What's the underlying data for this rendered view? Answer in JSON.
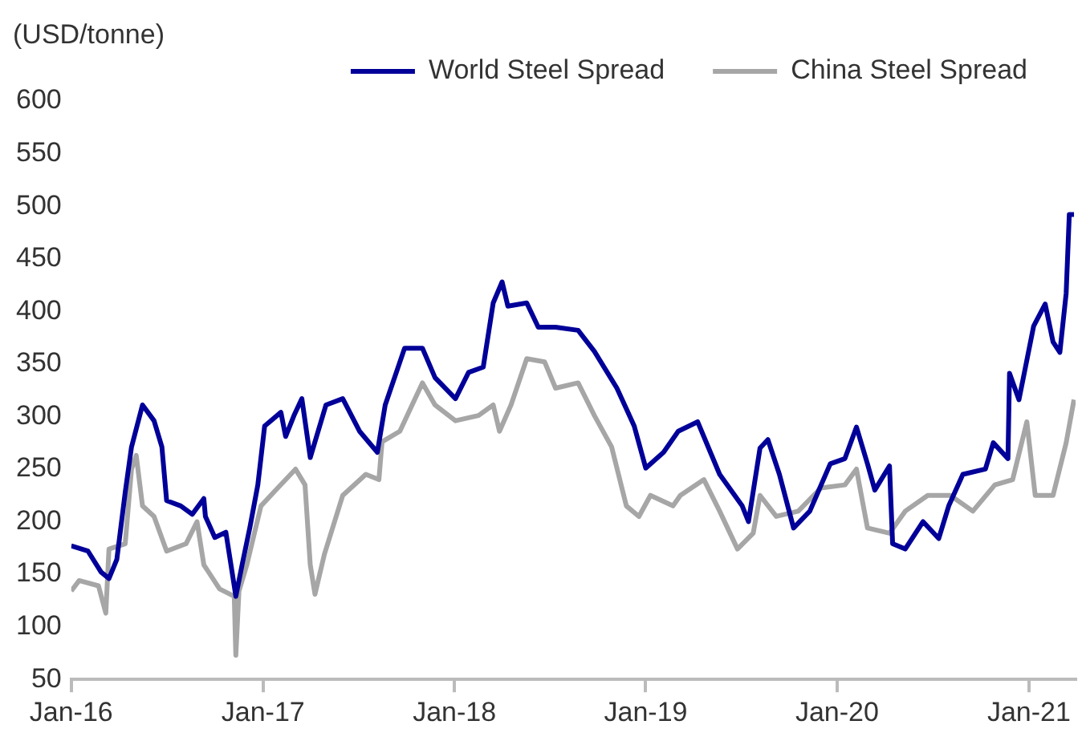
{
  "chart_data": {
    "type": "line",
    "ylabel": "(USD/tonne)",
    "xlim": [
      "2016-01-01",
      "2021-03-31"
    ],
    "xticks": [
      {
        "value": "2016-01-01",
        "label": "Jan-16"
      },
      {
        "value": "2017-01-01",
        "label": "Jan-17"
      },
      {
        "value": "2018-01-01",
        "label": "Jan-18"
      },
      {
        "value": "2019-01-01",
        "label": "Jan-19"
      },
      {
        "value": "2020-01-01",
        "label": "Jan-20"
      },
      {
        "value": "2021-01-01",
        "label": "Jan-21"
      }
    ],
    "ylim": [
      50,
      600
    ],
    "yticks": [
      50,
      100,
      150,
      200,
      250,
      300,
      350,
      400,
      450,
      500,
      550,
      600
    ],
    "grid": false,
    "legend": "top",
    "marker": "none",
    "line_style": "solid",
    "series": [
      {
        "name": "World Steel Spread",
        "color": "#000099",
        "x": [
          "2016-01-01",
          "2016-02-02",
          "2016-02-27",
          "2016-03-13",
          "2016-03-28",
          "2016-04-13",
          "2016-04-25",
          "2016-05-16",
          "2016-06-07",
          "2016-06-22",
          "2016-07-01",
          "2016-07-28",
          "2016-08-19",
          "2016-09-10",
          "2016-09-13",
          "2016-10-01",
          "2016-10-22",
          "2016-11-07",
          "2016-11-10",
          "2016-11-22",
          "2016-12-07",
          "2016-12-22",
          "2017-01-04",
          "2017-02-04",
          "2017-02-13",
          "2017-03-01",
          "2017-03-16",
          "2017-04-01",
          "2017-05-01",
          "2017-06-02",
          "2017-07-04",
          "2017-08-07",
          "2017-08-22",
          "2017-09-28",
          "2017-11-01",
          "2017-11-25",
          "2018-01-03",
          "2018-01-28",
          "2018-02-25",
          "2018-03-16",
          "2018-04-02",
          "2018-04-13",
          "2018-05-19",
          "2018-06-10",
          "2018-07-13",
          "2018-08-25",
          "2018-09-25",
          "2018-11-07",
          "2018-12-10",
          "2019-01-01",
          "2019-02-04",
          "2019-03-04",
          "2019-04-10",
          "2019-05-01",
          "2019-05-22",
          "2019-07-04",
          "2019-07-16",
          "2019-08-07",
          "2019-08-22",
          "2019-09-13",
          "2019-10-10",
          "2019-11-10",
          "2019-12-19",
          "2020-01-16",
          "2020-02-07",
          "2020-02-28",
          "2020-03-13",
          "2020-04-10",
          "2020-04-16",
          "2020-05-10",
          "2020-06-13",
          "2020-07-13",
          "2020-08-01",
          "2020-08-28",
          "2020-10-10",
          "2020-10-25",
          "2020-11-22",
          "2020-11-25",
          "2020-12-13",
          "2021-01-10",
          "2021-02-01",
          "2021-02-16",
          "2021-03-01",
          "2021-03-13",
          "2021-03-19",
          "2021-03-28"
        ],
        "values": [
          177,
          172,
          152,
          146,
          164,
          228,
          271,
          311,
          296,
          271,
          220,
          215,
          207,
          222,
          205,
          185,
          190,
          139,
          129,
          159,
          195,
          235,
          291,
          304,
          281,
          301,
          317,
          261,
          311,
          317,
          286,
          266,
          311,
          365,
          365,
          337,
          317,
          342,
          347,
          408,
          428,
          405,
          408,
          385,
          385,
          382,
          362,
          327,
          291,
          251,
          266,
          286,
          295,
          270,
          245,
          215,
          200,
          270,
          278,
          245,
          194,
          210,
          255,
          260,
          290,
          255,
          230,
          253,
          179,
          174,
          200,
          184,
          215,
          245,
          250,
          275,
          260,
          341,
          316,
          386,
          407,
          371,
          361,
          417,
          492,
          492
        ]
      },
      {
        "name": "China Steel Spread",
        "color": "#a6a6a6",
        "x": [
          "2016-01-01",
          "2016-01-16",
          "2016-02-22",
          "2016-03-07",
          "2016-03-13",
          "2016-04-13",
          "2016-04-25",
          "2016-05-04",
          "2016-05-16",
          "2016-06-07",
          "2016-07-01",
          "2016-08-07",
          "2016-08-28",
          "2016-09-10",
          "2016-10-10",
          "2016-11-07",
          "2016-11-10",
          "2016-11-16",
          "2016-12-01",
          "2016-12-28",
          "2017-01-25",
          "2017-03-04",
          "2017-03-22",
          "2017-04-01",
          "2017-04-10",
          "2017-04-28",
          "2017-06-02",
          "2017-07-16",
          "2017-08-10",
          "2017-08-16",
          "2017-09-19",
          "2017-11-01",
          "2017-11-25",
          "2018-01-03",
          "2018-02-16",
          "2018-03-16",
          "2018-03-28",
          "2018-04-19",
          "2018-05-19",
          "2018-06-22",
          "2018-07-13",
          "2018-08-25",
          "2018-09-25",
          "2018-10-28",
          "2018-11-25",
          "2018-12-19",
          "2019-01-10",
          "2019-02-22",
          "2019-03-08",
          "2019-04-22",
          "2019-05-22",
          "2019-06-25",
          "2019-07-25",
          "2019-08-07",
          "2019-09-07",
          "2019-10-19",
          "2019-12-01",
          "2020-01-16",
          "2020-02-07",
          "2020-02-28",
          "2020-04-10",
          "2020-05-10",
          "2020-06-22",
          "2020-08-04",
          "2020-09-16",
          "2020-10-28",
          "2020-12-01",
          "2020-12-28",
          "2021-01-13",
          "2021-02-16",
          "2021-03-13",
          "2021-03-28"
        ],
        "values": [
          134,
          144,
          139,
          113,
          174,
          179,
          250,
          263,
          215,
          205,
          172,
          179,
          200,
          159,
          136,
          129,
          73,
          134,
          159,
          215,
          230,
          250,
          235,
          159,
          131,
          169,
          225,
          245,
          240,
          276,
          286,
          332,
          311,
          296,
          301,
          311,
          286,
          311,
          355,
          352,
          327,
          332,
          301,
          271,
          215,
          205,
          225,
          215,
          225,
          240,
          210,
          174,
          189,
          225,
          205,
          210,
          232,
          235,
          250,
          194,
          189,
          210,
          225,
          225,
          210,
          235,
          240,
          295,
          225,
          225,
          275,
          316
        ]
      }
    ]
  }
}
